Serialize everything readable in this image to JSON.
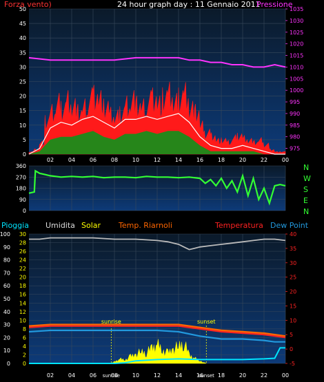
{
  "header": {
    "title": "24 hour graph day : 11 Gennaio 2011",
    "left_label": "Forza vento)",
    "right_label": "Pressione"
  },
  "middle": {
    "compass": [
      "N",
      "W",
      "S",
      "E",
      "N"
    ]
  },
  "legend": {
    "pioggia": "Pioggia",
    "umidita": "Umidita",
    "solar": "Solar",
    "riarnoli": "Temp. Riarnoli",
    "temperatura": "Temperatura",
    "dewpoint": "Dew Point"
  },
  "colors": {
    "background": "#000000",
    "plot_bg_top": "#0b1a2a",
    "plot_bg_bottom": "#0d3a78",
    "grid": "#3a4a5c",
    "wind_gust": "#ff1a1a",
    "wind_avg": "#ffffff",
    "wind_green": "#1a8c1a",
    "pressure": "#ff33ff",
    "direction": "#33ff33",
    "humidity": "#bbbbbb",
    "solar": "#ffff00",
    "temp_riarnoli": "#ff6600",
    "temperatura": "#ff2222",
    "dewpoint": "#2299dd",
    "rain": "#00e5ff",
    "compass": "#33ff33",
    "left_label": "#ff3333",
    "right_label": "#ff33ff",
    "title": "#ffffff",
    "sun_marker": "#ffff00"
  },
  "chart_data": [
    {
      "type": "line",
      "name": "wind-pressure",
      "x_ticks": [
        "02",
        "04",
        "06",
        "08",
        "10",
        "12",
        "14",
        "16",
        "18",
        "20",
        "22",
        "00"
      ],
      "x_range_hours": [
        0,
        24
      ],
      "y_left": {
        "ticks": [
          0,
          5,
          10,
          15,
          20,
          25,
          30,
          35,
          40,
          45,
          50
        ],
        "range": [
          0,
          50
        ]
      },
      "y_right": {
        "ticks": [
          975,
          980,
          985,
          990,
          995,
          1000,
          1005,
          1010,
          1015,
          1020,
          1025,
          1030,
          1035
        ],
        "range": [
          972.5,
          1035
        ]
      },
      "series": [
        {
          "key": "pressure",
          "axis": "right",
          "x": [
            0,
            2,
            4,
            6,
            8,
            10,
            12,
            13,
            14,
            15,
            16,
            17,
            18,
            19,
            20,
            21,
            22,
            23,
            24
          ],
          "y": [
            1014,
            1013,
            1013,
            1013,
            1013,
            1014,
            1014,
            1014,
            1014,
            1013,
            1013,
            1012,
            1012,
            1011,
            1011,
            1010,
            1010,
            1011,
            1010
          ]
        },
        {
          "key": "gust",
          "axis": "left",
          "x": [
            0,
            0.5,
            1,
            1.5,
            2,
            2.5,
            3,
            3.5,
            4,
            4.5,
            5,
            5.5,
            6,
            6.5,
            7,
            7.5,
            8,
            8.5,
            9,
            9.5,
            10,
            10.5,
            11,
            11.5,
            12,
            12.5,
            13,
            13.5,
            14,
            14.5,
            15,
            15.5,
            16,
            16.5,
            17,
            17.5,
            18,
            18.5,
            19,
            19.5,
            20,
            20.5,
            21,
            21.5,
            22,
            22.5,
            23,
            23.5,
            24
          ],
          "y": [
            1,
            2,
            5,
            14,
            18,
            22,
            20,
            24,
            21,
            18,
            20,
            24,
            26,
            24,
            20,
            17,
            16,
            18,
            22,
            24,
            21,
            20,
            23,
            25,
            22,
            24,
            26,
            22,
            25,
            27,
            20,
            18,
            12,
            9,
            8,
            6,
            6,
            5,
            7,
            8,
            7,
            6,
            5,
            6,
            4,
            2,
            1,
            1,
            1
          ]
        },
        {
          "key": "avg",
          "axis": "left",
          "x": [
            0,
            1,
            2,
            3,
            4,
            5,
            6,
            7,
            8,
            9,
            10,
            11,
            12,
            13,
            14,
            15,
            16,
            17,
            18,
            19,
            20,
            21,
            22,
            23,
            24
          ],
          "y": [
            0,
            2,
            9,
            11,
            10,
            12,
            13,
            11,
            9,
            12,
            12,
            13,
            12,
            13,
            14,
            11,
            6,
            3,
            2,
            2,
            3,
            2,
            1,
            0,
            0
          ]
        },
        {
          "key": "green",
          "axis": "left",
          "x": [
            0,
            1,
            2,
            3,
            4,
            5,
            6,
            7,
            8,
            9,
            10,
            11,
            12,
            13,
            14,
            15,
            16,
            17,
            18,
            19,
            20,
            21,
            22,
            23,
            24
          ],
          "y": [
            0,
            1,
            5,
            6,
            6,
            7,
            8,
            6,
            5,
            7,
            7,
            8,
            7,
            8,
            8,
            6,
            3,
            1,
            1,
            1,
            1,
            1,
            0,
            0,
            0
          ]
        }
      ]
    },
    {
      "type": "line",
      "name": "wind-direction",
      "x_ticks": [],
      "x_range_hours": [
        0,
        24
      ],
      "y_left": {
        "ticks": [
          0,
          90,
          180,
          270,
          360
        ],
        "range": [
          0,
          360
        ]
      },
      "series": [
        {
          "key": "direction",
          "x": [
            0,
            0.5,
            0.6,
            1,
            1.5,
            2,
            3,
            4,
            5,
            6,
            7,
            8,
            9,
            10,
            11,
            12,
            13,
            14,
            15,
            16,
            16.5,
            17,
            17.5,
            18,
            18.5,
            19,
            19.5,
            20,
            20.5,
            21,
            21.5,
            22,
            22.5,
            23,
            23.5,
            24
          ],
          "y": [
            140,
            150,
            320,
            300,
            290,
            280,
            270,
            275,
            270,
            275,
            265,
            270,
            270,
            265,
            275,
            270,
            270,
            265,
            270,
            260,
            220,
            250,
            200,
            260,
            180,
            240,
            150,
            280,
            120,
            260,
            90,
            180,
            60,
            200,
            210,
            200
          ]
        }
      ]
    },
    {
      "type": "line",
      "name": "temp-humidity-rain",
      "x_ticks": [
        "02",
        "04",
        "06",
        "08",
        "10",
        "12",
        "14",
        "16",
        "18",
        "20",
        "22",
        "00"
      ],
      "x_range_hours": [
        0,
        24
      ],
      "y_left_outer": {
        "ticks": [
          0,
          10,
          20,
          30,
          40,
          50,
          60,
          70,
          80,
          90,
          100
        ],
        "range": [
          0,
          100
        ]
      },
      "y_left_inner": {
        "ticks": [
          0,
          2,
          4,
          6,
          8,
          10,
          12,
          14,
          16,
          18,
          20,
          22,
          24,
          26,
          28,
          30
        ],
        "range": [
          0,
          30
        ]
      },
      "y_right": {
        "ticks": [
          -5,
          0,
          5,
          10,
          15,
          20,
          25,
          30,
          35,
          40
        ],
        "range": [
          -5,
          40
        ]
      },
      "annotations": {
        "sunrise": "sunrise",
        "sunset": "sunset"
      },
      "sunrise_hour": 7.7,
      "sunset_hour": 16.6,
      "series": [
        {
          "key": "humidity",
          "axis": "left_outer",
          "x": [
            0,
            1,
            2,
            4,
            6,
            8,
            10,
            12,
            13,
            14,
            14.5,
            15,
            15.5,
            16,
            17,
            18,
            19,
            20,
            21,
            22,
            23,
            24
          ],
          "y": [
            96,
            96,
            97,
            97,
            97,
            96,
            96,
            95,
            94,
            92,
            90,
            88,
            89,
            90,
            91,
            92,
            93,
            94,
            95,
            96,
            96,
            95
          ]
        },
        {
          "key": "temp_riarnoli",
          "axis": "right",
          "x": [
            0,
            2,
            4,
            6,
            8,
            10,
            12,
            14,
            16,
            18,
            20,
            22,
            23,
            24
          ],
          "y": [
            8,
            8.5,
            8.5,
            8.5,
            8.5,
            8.5,
            8.5,
            8.5,
            7.5,
            6.5,
            6,
            5.5,
            5,
            4.5
          ]
        },
        {
          "key": "temperatura",
          "axis": "right",
          "x": [
            0,
            2,
            4,
            6,
            8,
            10,
            12,
            14,
            16,
            18,
            20,
            22,
            23,
            24
          ],
          "y": [
            7.5,
            8,
            8,
            8,
            8,
            8,
            8,
            8,
            7,
            6,
            5.5,
            5,
            4.5,
            4
          ]
        },
        {
          "key": "dewpoint",
          "axis": "right",
          "x": [
            0,
            2,
            4,
            6,
            8,
            10,
            12,
            14,
            16,
            18,
            20,
            22,
            23,
            24
          ],
          "y": [
            6,
            6.5,
            6.5,
            6.5,
            6.5,
            6.5,
            6.5,
            6,
            4.5,
            3.5,
            3.5,
            3,
            2.5,
            2.5
          ]
        },
        {
          "key": "rain",
          "axis": "left_outer",
          "x": [
            0,
            2,
            4,
            6,
            8,
            9,
            10,
            12,
            14,
            16,
            18,
            20,
            22,
            23,
            23.5,
            24
          ],
          "y": [
            0,
            0,
            0,
            0,
            0,
            0.5,
            2,
            3,
            3.5,
            3,
            3,
            3,
            3.5,
            4,
            12,
            12
          ]
        },
        {
          "key": "solar",
          "axis": "left_outer",
          "x": [
            7.7,
            8,
            8.5,
            9,
            9.5,
            10,
            10.5,
            11,
            11.5,
            12,
            12.5,
            13,
            13.5,
            14,
            14.5,
            15,
            15.5,
            16,
            16.6
          ],
          "y": [
            0,
            2,
            5,
            4,
            8,
            10,
            14,
            12,
            18,
            22,
            15,
            12,
            16,
            20,
            24,
            10,
            6,
            3,
            0
          ]
        }
      ]
    }
  ]
}
